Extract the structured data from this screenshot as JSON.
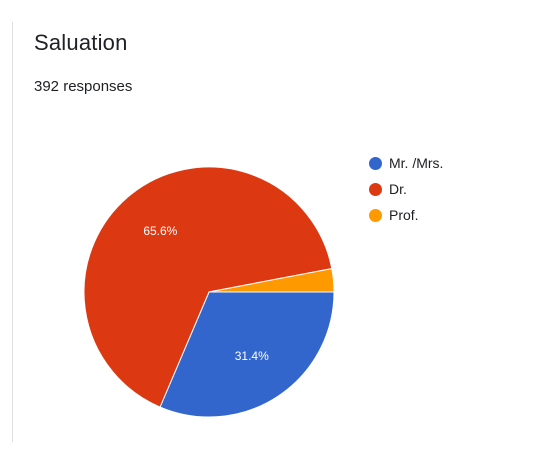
{
  "header": {
    "title": "Saluation",
    "responses": "392 responses"
  },
  "colors": {
    "mr_mrs": "#3366cc",
    "dr": "#dc3912",
    "prof": "#ff9900"
  },
  "chart_data": {
    "type": "pie",
    "title": "Saluation",
    "total_responses": 392,
    "start_angle_deg": 90,
    "legend_position": "right",
    "slices": [
      {
        "label": "Mr. /Mrs.",
        "value": 31.4,
        "display": "31.4%",
        "color": "#3366cc",
        "label_shown": true
      },
      {
        "label": "Dr.",
        "value": 65.6,
        "display": "65.6%",
        "color": "#dc3912",
        "label_shown": true
      },
      {
        "label": "Prof.",
        "value": 3.0,
        "display": "",
        "color": "#ff9900",
        "label_shown": false
      }
    ]
  }
}
